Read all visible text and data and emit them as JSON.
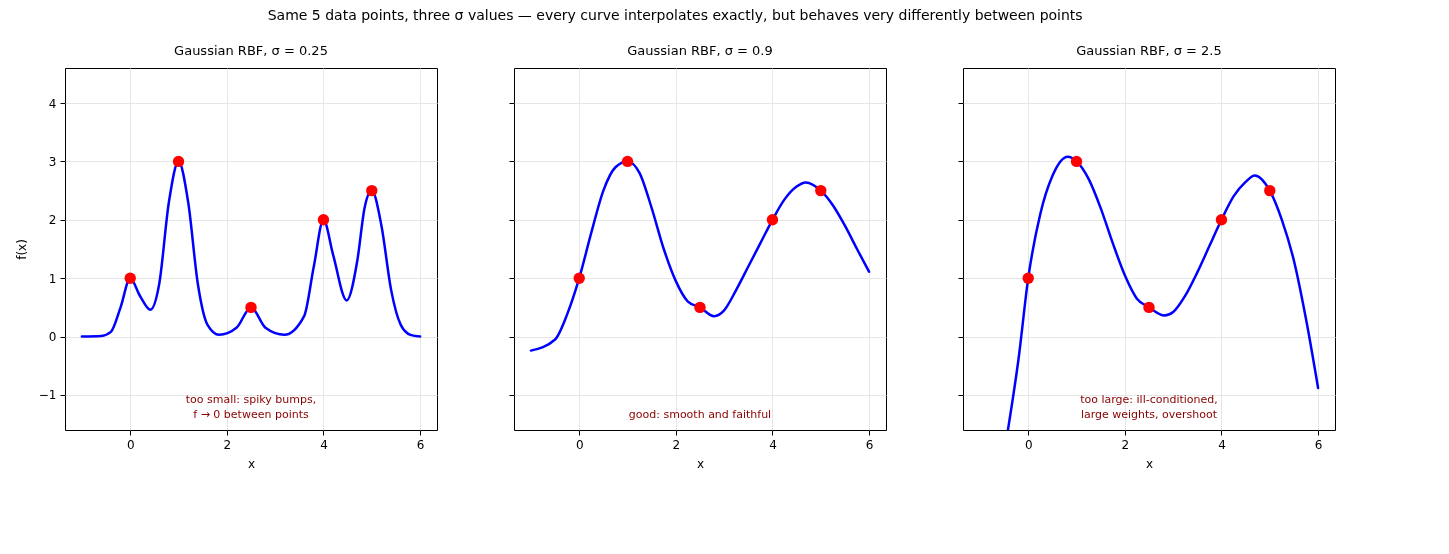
{
  "chart_data": [
    {
      "type": "line",
      "subtitle": "Same 5 data points, three σ values — every curve interpolates exactly, but behaves very differently between points",
      "title": "Gaussian RBF, σ = 0.25",
      "xlabel": "x",
      "ylabel": "f(x)",
      "xlim": [
        -1.35,
        6.35
      ],
      "ylim": [
        -1.6,
        4.6
      ],
      "xticks": [
        0,
        2,
        4,
        6
      ],
      "yticks": [
        -1,
        0,
        1,
        2,
        3,
        4
      ],
      "grid": true,
      "series": [
        {
          "type": "line",
          "color": "#0000ff",
          "x": [
            -1,
            -0.6,
            -0.4,
            -0.2,
            0,
            0.2,
            0.42,
            0.6,
            0.8,
            1,
            1.2,
            1.4,
            1.6,
            1.84,
            2.2,
            2.5,
            2.8,
            3.19,
            3.6,
            3.8,
            4,
            4.2,
            4.48,
            4.7,
            4.85,
            5,
            5.2,
            5.4,
            5.6,
            5.8,
            6
          ],
          "values": [
            0,
            0.01,
            0.08,
            0.5,
            1,
            0.7,
            0.46,
            0.9,
            2.3,
            3,
            2.3,
            0.9,
            0.2,
            0.03,
            0.15,
            0.5,
            0.15,
            0.03,
            0.35,
            1.2,
            2,
            1.4,
            0.62,
            1.3,
            2.2,
            2.5,
            1.9,
            0.8,
            0.2,
            0.03,
            0
          ]
        },
        {
          "type": "scatter",
          "color": "#ff0000",
          "marker": "circle",
          "x": [
            0,
            1,
            2.5,
            4,
            5
          ],
          "values": [
            1,
            3,
            0.5,
            2,
            2.5
          ]
        }
      ],
      "annotations": [
        "too small: spiky bumps,\nf → 0 between points"
      ]
    },
    {
      "type": "line",
      "title": "Gaussian RBF, σ = 0.9",
      "xlabel": "x",
      "xlim": [
        -1.35,
        6.35
      ],
      "ylim": [
        -1.6,
        4.6
      ],
      "xticks": [
        0,
        2,
        4,
        6
      ],
      "yticks": [
        -1,
        0,
        1,
        2,
        3,
        4
      ],
      "grid": true,
      "tick_labels": "x",
      "series": [
        {
          "type": "line",
          "color": "#0000ff",
          "x": [
            -1,
            -0.5,
            -0.25,
            0,
            0.25,
            0.5,
            0.75,
            1,
            1.25,
            1.5,
            1.75,
            2,
            2.25,
            2.5,
            2.79,
            3,
            3.25,
            3.5,
            3.75,
            4,
            4.25,
            4.5,
            4.69,
            5,
            5.25,
            5.5,
            5.75,
            6
          ],
          "values": [
            -0.24,
            -0.05,
            0.38,
            1,
            1.78,
            2.5,
            2.9,
            3,
            2.8,
            2.2,
            1.5,
            0.95,
            0.6,
            0.5,
            0.35,
            0.45,
            0.8,
            1.2,
            1.6,
            2,
            2.35,
            2.57,
            2.64,
            2.5,
            2.25,
            1.9,
            1.5,
            1.11
          ]
        },
        {
          "type": "scatter",
          "color": "#ff0000",
          "marker": "circle",
          "x": [
            0,
            1,
            2.5,
            4,
            5
          ],
          "values": [
            1,
            3,
            0.5,
            2,
            2.5
          ]
        }
      ],
      "annotations": [
        "good: smooth and faithful"
      ]
    },
    {
      "type": "line",
      "title": "Gaussian RBF, σ = 2.5",
      "xlabel": "x",
      "xlim": [
        -1.35,
        6.35
      ],
      "ylim": [
        -1.6,
        4.6
      ],
      "xticks": [
        0,
        2,
        4,
        6
      ],
      "yticks": [
        -1,
        0,
        1,
        2,
        3,
        4
      ],
      "grid": true,
      "tick_labels": "x",
      "series": [
        {
          "type": "line",
          "color": "#0000ff",
          "x": [
            -0.42,
            -0.2,
            0,
            0.25,
            0.5,
            0.82,
            1,
            1.25,
            1.5,
            1.75,
            2,
            2.25,
            2.5,
            2.82,
            3,
            3.25,
            3.5,
            3.75,
            4,
            4.25,
            4.5,
            4.69,
            5,
            5.25,
            5.5,
            5.75,
            6
          ],
          "values": [
            -1.6,
            -0.38,
            1,
            2.1,
            2.75,
            3.08,
            3,
            2.7,
            2.2,
            1.6,
            1.05,
            0.65,
            0.5,
            0.36,
            0.42,
            0.7,
            1.1,
            1.55,
            2,
            2.4,
            2.65,
            2.76,
            2.5,
            2,
            1.3,
            0.3,
            -0.88
          ]
        },
        {
          "type": "scatter",
          "color": "#ff0000",
          "marker": "circle",
          "x": [
            0,
            1,
            2.5,
            4,
            5
          ],
          "values": [
            1,
            3,
            0.5,
            2,
            2.5
          ]
        }
      ],
      "annotations": [
        "too large: ill-conditioned,\nlarge weights, overshoot"
      ]
    }
  ]
}
